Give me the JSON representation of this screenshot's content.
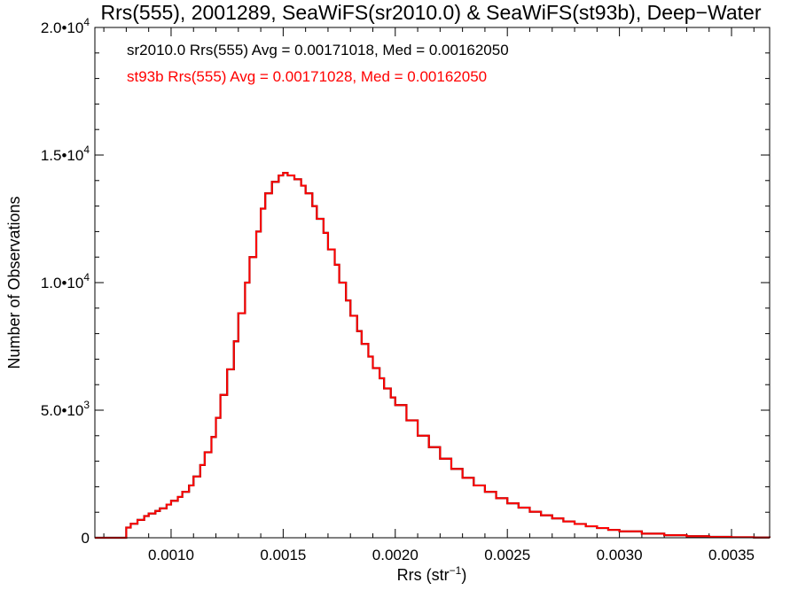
{
  "chart_data": {
    "type": "histogram",
    "title": "Rrs(555), 2001289, SeaWiFS(sr2010.0) & SeaWiFS(st93b), Deep−Water",
    "xlabel": {
      "base": "Rrs (str",
      "sup": "−1",
      "tail": ")"
    },
    "ylabel": "Number of Observations",
    "xlim": [
      0.00066,
      0.00367
    ],
    "ylim": [
      0,
      20000
    ],
    "x_ticks": [
      {
        "value": 0.001,
        "label": "0.0010"
      },
      {
        "value": 0.0015,
        "label": "0.0015"
      },
      {
        "value": 0.002,
        "label": "0.0020"
      },
      {
        "value": 0.0025,
        "label": "0.0025"
      },
      {
        "value": 0.003,
        "label": "0.0030"
      },
      {
        "value": 0.0035,
        "label": "0.0035"
      }
    ],
    "y_ticks": [
      {
        "value": 0,
        "mant": "0",
        "exp": ""
      },
      {
        "value": 5000,
        "mant": "5.0•10",
        "exp": "3"
      },
      {
        "value": 10000,
        "mant": "1.0•10",
        "exp": "4"
      },
      {
        "value": 15000,
        "mant": "1.5•10",
        "exp": "4"
      },
      {
        "value": 20000,
        "mant": "2.0•10",
        "exp": "4"
      }
    ],
    "annotations": [
      {
        "text": "sr2010.0 Rrs(555) Avg = 0.00171018, Med = 0.00162050",
        "color": "#000000"
      },
      {
        "text": "st93b Rrs(555) Avg = 0.00171028, Med = 0.00162050",
        "color": "#ff0000"
      }
    ],
    "series": [
      {
        "name": "sr2010.0",
        "color": "#000000",
        "x": [
          0.00066,
          0.0007,
          0.00075,
          0.00079,
          0.0008,
          0.00082,
          0.00085,
          0.00088,
          0.0009,
          0.00093,
          0.00095,
          0.00098,
          0.001,
          0.00103,
          0.00105,
          0.00108,
          0.0011,
          0.00113,
          0.00115,
          0.00118,
          0.0012,
          0.00122,
          0.00125,
          0.00128,
          0.0013,
          0.00133,
          0.00135,
          0.00138,
          0.0014,
          0.00142,
          0.00145,
          0.00148,
          0.0015,
          0.00152,
          0.00155,
          0.00158,
          0.0016,
          0.00163,
          0.00165,
          0.00168,
          0.0017,
          0.00173,
          0.00175,
          0.00178,
          0.0018,
          0.00183,
          0.00185,
          0.00188,
          0.0019,
          0.00193,
          0.00195,
          0.00198,
          0.002,
          0.00205,
          0.0021,
          0.00215,
          0.0022,
          0.00225,
          0.0023,
          0.00235,
          0.0024,
          0.00245,
          0.0025,
          0.00255,
          0.0026,
          0.00265,
          0.0027,
          0.00275,
          0.0028,
          0.00285,
          0.0029,
          0.00295,
          0.003,
          0.0031,
          0.0032,
          0.0033,
          0.0034,
          0.0035,
          0.0036,
          0.00367
        ],
        "values": [
          0,
          0,
          0,
          0,
          400,
          550,
          700,
          850,
          950,
          1050,
          1150,
          1300,
          1450,
          1600,
          1800,
          2050,
          2400,
          2850,
          3350,
          3950,
          4700,
          5600,
          6600,
          7700,
          8800,
          10000,
          11000,
          12000,
          12900,
          13500,
          13950,
          14200,
          14300,
          14200,
          14050,
          13800,
          13500,
          13000,
          12500,
          11950,
          11300,
          10700,
          10000,
          9300,
          8700,
          8100,
          7600,
          7100,
          6650,
          6250,
          5850,
          5500,
          5200,
          4600,
          4000,
          3550,
          3100,
          2700,
          2350,
          2050,
          1800,
          1550,
          1350,
          1180,
          1020,
          880,
          760,
          640,
          540,
          450,
          380,
          310,
          250,
          160,
          100,
          60,
          35,
          20,
          10,
          5
        ]
      },
      {
        "name": "st93b",
        "color": "#ff0000",
        "x": [
          0.00066,
          0.0007,
          0.00075,
          0.00079,
          0.0008,
          0.00082,
          0.00085,
          0.00088,
          0.0009,
          0.00093,
          0.00095,
          0.00098,
          0.001,
          0.00103,
          0.00105,
          0.00108,
          0.0011,
          0.00113,
          0.00115,
          0.00118,
          0.0012,
          0.00122,
          0.00125,
          0.00128,
          0.0013,
          0.00133,
          0.00135,
          0.00138,
          0.0014,
          0.00142,
          0.00145,
          0.00148,
          0.0015,
          0.00152,
          0.00155,
          0.00158,
          0.0016,
          0.00163,
          0.00165,
          0.00168,
          0.0017,
          0.00173,
          0.00175,
          0.00178,
          0.0018,
          0.00183,
          0.00185,
          0.00188,
          0.0019,
          0.00193,
          0.00195,
          0.00198,
          0.002,
          0.00205,
          0.0021,
          0.00215,
          0.0022,
          0.00225,
          0.0023,
          0.00235,
          0.0024,
          0.00245,
          0.0025,
          0.00255,
          0.0026,
          0.00265,
          0.0027,
          0.00275,
          0.0028,
          0.00285,
          0.0029,
          0.00295,
          0.003,
          0.0031,
          0.0032,
          0.0033,
          0.0034,
          0.0035,
          0.0036,
          0.00367
        ],
        "values": [
          0,
          0,
          0,
          0,
          400,
          550,
          700,
          850,
          950,
          1050,
          1150,
          1300,
          1450,
          1600,
          1800,
          2050,
          2400,
          2850,
          3350,
          3950,
          4700,
          5600,
          6600,
          7700,
          8800,
          10000,
          11000,
          12000,
          12900,
          13500,
          13950,
          14200,
          14300,
          14200,
          14050,
          13800,
          13500,
          13000,
          12500,
          11950,
          11300,
          10700,
          10000,
          9300,
          8700,
          8100,
          7600,
          7100,
          6650,
          6250,
          5850,
          5500,
          5200,
          4600,
          4000,
          3550,
          3100,
          2700,
          2350,
          2050,
          1800,
          1550,
          1350,
          1180,
          1020,
          880,
          760,
          640,
          540,
          450,
          380,
          310,
          250,
          160,
          100,
          60,
          35,
          20,
          10,
          5
        ]
      }
    ]
  }
}
